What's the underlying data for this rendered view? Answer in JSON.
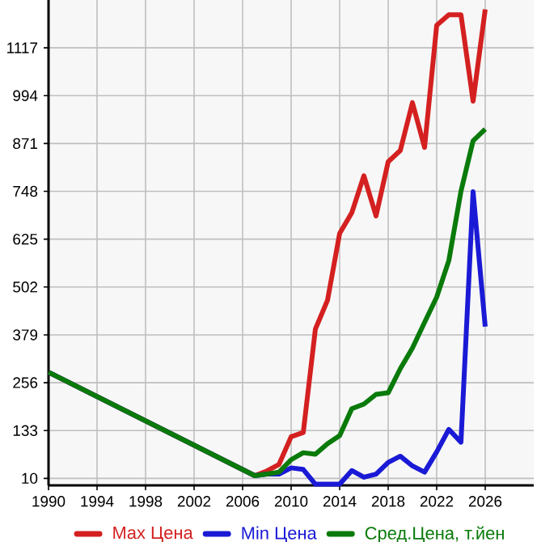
{
  "chart_data": {
    "type": "line",
    "x": [
      1990,
      2007,
      2008,
      2009,
      2010,
      2011,
      2012,
      2013,
      2014,
      2015,
      2016,
      2017,
      2018,
      2019,
      2020,
      2021,
      2022,
      2023,
      2024,
      2025,
      2026
    ],
    "series": [
      {
        "name": "Max Цена",
        "color": "#d42020",
        "values": [
          283,
          17,
          29,
          46,
          117,
          128,
          394,
          468,
          640,
          693,
          788,
          685,
          824,
          853,
          976,
          861,
          1175,
          1202,
          1202,
          980,
          1216
        ]
      },
      {
        "name": "Min Цена",
        "color": "#1a1ad6",
        "values": [
          283,
          17,
          21,
          21,
          37,
          33,
          -5,
          -5,
          -5,
          30,
          13,
          21,
          51,
          67,
          42,
          26,
          78,
          136,
          103,
          747,
          400
        ]
      },
      {
        "name": "Сред.Цена, т.йен",
        "color": "#0a7a0a",
        "values": [
          283,
          17,
          21,
          26,
          58,
          76,
          72,
          99,
          120,
          189,
          201,
          226,
          230,
          292,
          345,
          411,
          476,
          570,
          748,
          878,
          908
        ]
      }
    ],
    "xlim": [
      1990,
      2030
    ],
    "ylim": [
      -8,
      1240
    ],
    "xticks": [
      1990,
      1994,
      1998,
      2002,
      2006,
      2010,
      2014,
      2018,
      2022,
      2026
    ],
    "yticks": [
      10,
      133,
      256,
      379,
      502,
      625,
      748,
      871,
      994,
      1117
    ],
    "grid": true,
    "legend": "bottom",
    "marker": "none",
    "line_style": "solid"
  }
}
